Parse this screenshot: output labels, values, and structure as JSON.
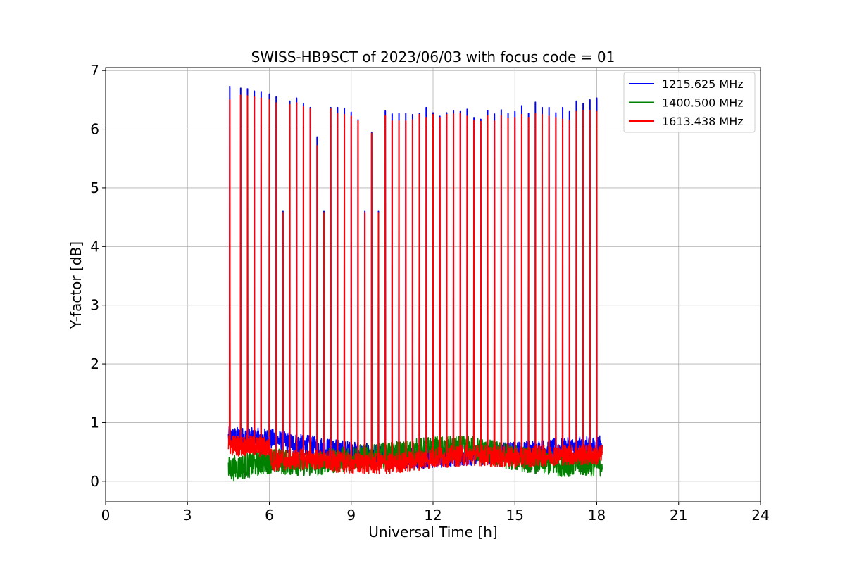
{
  "chart_data": {
    "type": "line",
    "title": "SWISS-HB9SCT of 2023/06/03 with focus code = 01",
    "xlabel": "Universal Time [h]",
    "ylabel": "Y-factor [dB]",
    "xlim": [
      0,
      24
    ],
    "ylim": [
      -0.35,
      7.05
    ],
    "xticks": [
      0,
      3,
      6,
      9,
      12,
      15,
      18,
      21,
      24
    ],
    "yticks": [
      0,
      1,
      2,
      3,
      4,
      5,
      6,
      7
    ],
    "grid": true,
    "legend_position": "top-right",
    "time_range_h": [
      4.5,
      18.2
    ],
    "series": [
      {
        "name": "1215.625 MHz",
        "color": "#0000ff",
        "baseline": [
          [
            4.5,
            0.75
          ],
          [
            6.0,
            0.72
          ],
          [
            7.5,
            0.6
          ],
          [
            9.0,
            0.5
          ],
          [
            10.5,
            0.4
          ],
          [
            12.0,
            0.4
          ],
          [
            13.5,
            0.45
          ],
          [
            15.0,
            0.5
          ],
          [
            16.5,
            0.55
          ],
          [
            18.2,
            0.6
          ]
        ],
        "peaks": [
          [
            4.55,
            6.73
          ],
          [
            4.95,
            6.7
          ],
          [
            5.2,
            6.69
          ],
          [
            5.45,
            6.65
          ],
          [
            5.7,
            6.63
          ],
          [
            6.0,
            6.6
          ],
          [
            6.25,
            6.55
          ],
          [
            6.5,
            4.6
          ],
          [
            6.75,
            6.48
          ],
          [
            7.0,
            6.53
          ],
          [
            7.25,
            6.43
          ],
          [
            7.5,
            6.37
          ],
          [
            7.75,
            5.87
          ],
          [
            8.0,
            4.6
          ],
          [
            8.25,
            6.37
          ],
          [
            8.5,
            6.37
          ],
          [
            8.75,
            6.35
          ],
          [
            9.0,
            6.29
          ],
          [
            9.25,
            6.16
          ],
          [
            9.5,
            4.6
          ],
          [
            9.75,
            5.95
          ],
          [
            10.0,
            4.6
          ],
          [
            10.25,
            6.31
          ],
          [
            10.5,
            6.26
          ],
          [
            10.75,
            6.27
          ],
          [
            11.0,
            6.27
          ],
          [
            11.25,
            6.25
          ],
          [
            11.5,
            6.27
          ],
          [
            11.75,
            6.37
          ],
          [
            12.0,
            6.28
          ],
          [
            12.25,
            6.22
          ],
          [
            12.5,
            6.28
          ],
          [
            12.75,
            6.31
          ],
          [
            13.0,
            6.3
          ],
          [
            13.25,
            6.34
          ],
          [
            13.5,
            6.2
          ],
          [
            13.75,
            6.17
          ],
          [
            14.0,
            6.32
          ],
          [
            14.25,
            6.26
          ],
          [
            14.5,
            6.33
          ],
          [
            14.75,
            6.27
          ],
          [
            15.0,
            6.3
          ],
          [
            15.25,
            6.4
          ],
          [
            15.5,
            6.27
          ],
          [
            15.75,
            6.46
          ],
          [
            16.0,
            6.37
          ],
          [
            16.25,
            6.37
          ],
          [
            16.5,
            6.28
          ],
          [
            16.75,
            6.37
          ],
          [
            17.0,
            6.3
          ],
          [
            17.25,
            6.48
          ],
          [
            17.5,
            6.44
          ],
          [
            17.75,
            6.5
          ],
          [
            18.0,
            6.53
          ]
        ]
      },
      {
        "name": "1400.500 MHz",
        "color": "#008000",
        "baseline": [
          [
            4.5,
            0.2
          ],
          [
            6.0,
            0.35
          ],
          [
            7.5,
            0.3
          ],
          [
            9.0,
            0.4
          ],
          [
            10.5,
            0.45
          ],
          [
            12.0,
            0.55
          ],
          [
            13.5,
            0.55
          ],
          [
            15.0,
            0.4
          ],
          [
            16.5,
            0.3
          ],
          [
            18.2,
            0.3
          ]
        ],
        "peaks": []
      },
      {
        "name": "1613.438 MHz",
        "color": "#ff0000",
        "baseline": [
          [
            4.5,
            0.62
          ],
          [
            6.0,
            0.58
          ],
          [
            6.1,
            0.35
          ],
          [
            7.5,
            0.38
          ],
          [
            9.0,
            0.3
          ],
          [
            10.5,
            0.3
          ],
          [
            12.0,
            0.4
          ],
          [
            13.5,
            0.45
          ],
          [
            15.0,
            0.4
          ],
          [
            16.5,
            0.45
          ],
          [
            18.2,
            0.45
          ]
        ],
        "peaks": [
          [
            4.55,
            6.5
          ],
          [
            4.95,
            6.58
          ],
          [
            5.2,
            6.57
          ],
          [
            5.45,
            6.55
          ],
          [
            5.7,
            6.53
          ],
          [
            6.0,
            6.5
          ],
          [
            6.25,
            6.45
          ],
          [
            6.5,
            4.58
          ],
          [
            6.75,
            6.42
          ],
          [
            7.0,
            6.45
          ],
          [
            7.25,
            6.38
          ],
          [
            7.5,
            6.35
          ],
          [
            7.75,
            5.72
          ],
          [
            8.0,
            4.58
          ],
          [
            8.25,
            6.35
          ],
          [
            8.5,
            6.27
          ],
          [
            8.75,
            6.25
          ],
          [
            9.0,
            6.22
          ],
          [
            9.25,
            6.14
          ],
          [
            9.5,
            4.58
          ],
          [
            9.75,
            5.93
          ],
          [
            10.0,
            4.58
          ],
          [
            10.25,
            6.23
          ],
          [
            10.5,
            6.14
          ],
          [
            10.75,
            6.14
          ],
          [
            11.0,
            6.14
          ],
          [
            11.25,
            6.16
          ],
          [
            11.5,
            6.25
          ],
          [
            11.75,
            6.2
          ],
          [
            12.0,
            6.25
          ],
          [
            12.25,
            6.2
          ],
          [
            12.5,
            6.25
          ],
          [
            12.75,
            6.26
          ],
          [
            13.0,
            6.27
          ],
          [
            13.25,
            6.22
          ],
          [
            13.5,
            6.15
          ],
          [
            13.75,
            6.13
          ],
          [
            14.0,
            6.23
          ],
          [
            14.25,
            6.14
          ],
          [
            14.5,
            6.23
          ],
          [
            14.75,
            6.19
          ],
          [
            15.0,
            6.2
          ],
          [
            15.25,
            6.25
          ],
          [
            15.5,
            6.2
          ],
          [
            15.75,
            6.27
          ],
          [
            16.0,
            6.25
          ],
          [
            16.25,
            6.22
          ],
          [
            16.5,
            6.2
          ],
          [
            16.75,
            6.17
          ],
          [
            17.0,
            6.15
          ],
          [
            17.25,
            6.3
          ],
          [
            17.5,
            6.32
          ],
          [
            17.75,
            6.32
          ],
          [
            18.0,
            6.3
          ]
        ]
      }
    ]
  }
}
